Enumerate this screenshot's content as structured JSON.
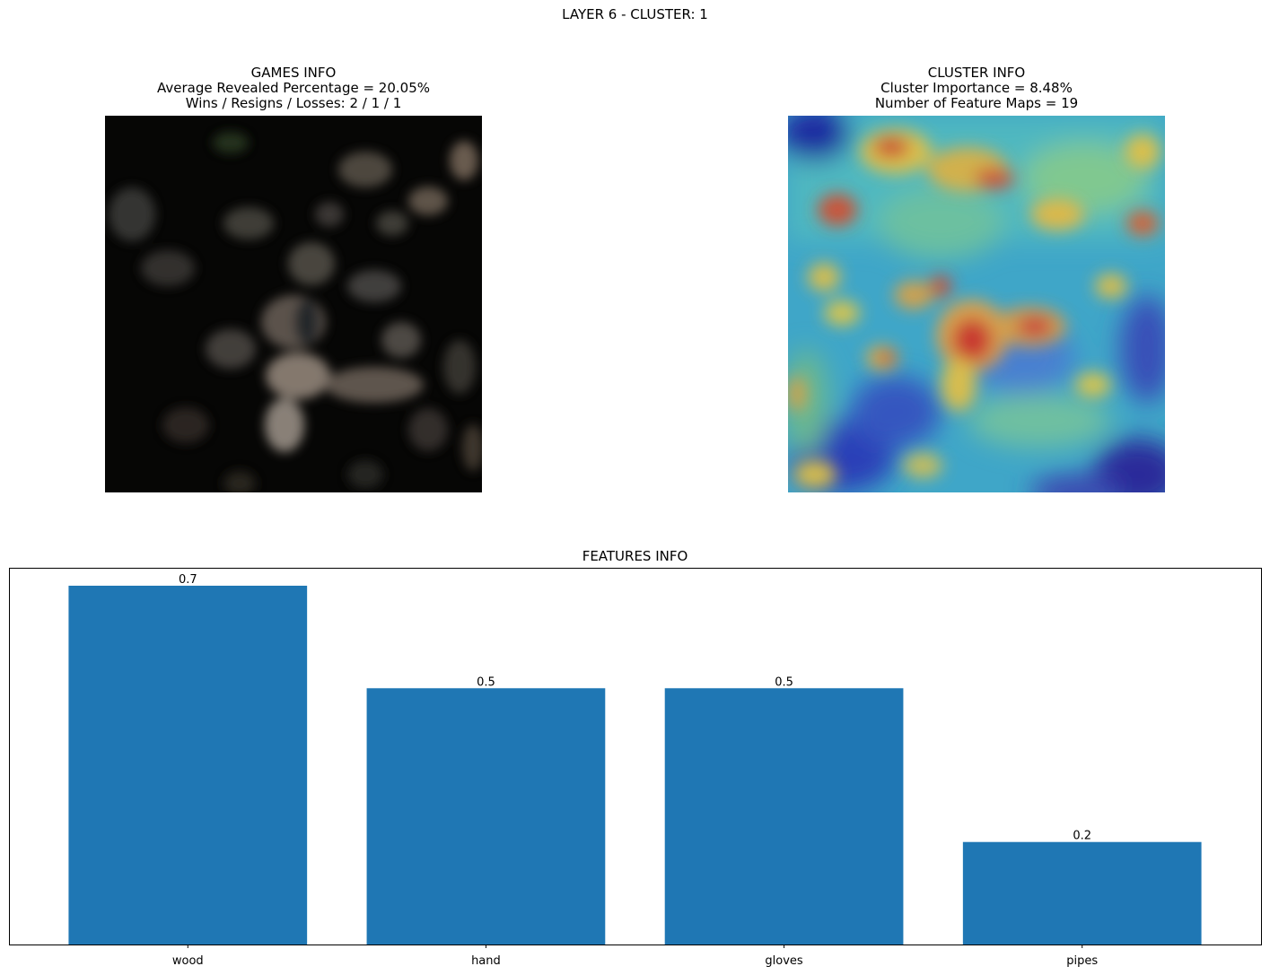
{
  "suptitle": "LAYER 6 - CLUSTER: 1",
  "games_panel": {
    "title_lines": [
      "GAMES INFO",
      "Average Revealed Percentage = 20.05%",
      "Wins / Resigns / Losses: 2 / 1 / 1"
    ]
  },
  "cluster_panel": {
    "title_lines": [
      "CLUSTER INFO",
      "Cluster Importance = 8.48%",
      "Number of Feature Maps = 19"
    ]
  },
  "colors": {
    "bar": "#1f77b4",
    "axis": "#000000"
  },
  "chart_data": {
    "type": "bar",
    "title": "FEATURES INFO",
    "categories": [
      "wood",
      "hand",
      "gloves",
      "pipes"
    ],
    "values": [
      0.7,
      0.5,
      0.5,
      0.2
    ],
    "value_labels": [
      "0.7",
      "0.5",
      "0.5",
      "0.2"
    ],
    "xlabel": "",
    "ylabel": "",
    "ylim": [
      0,
      0.735
    ],
    "grid": false,
    "y_ticks_visible": false
  }
}
